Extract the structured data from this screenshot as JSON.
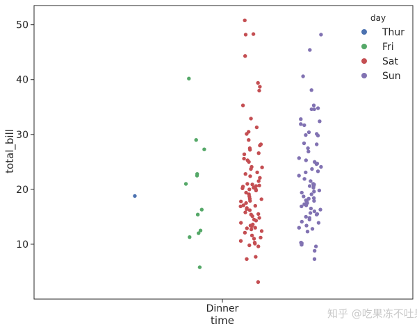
{
  "chart_data": {
    "type": "scatter",
    "subtype": "stripplot",
    "title": "",
    "xlabel": "time",
    "ylabel": "total_bill",
    "categories": [
      "Dinner"
    ],
    "ylim": [
      0,
      53.5
    ],
    "yticks": [
      10,
      20,
      30,
      40,
      50
    ],
    "grid": false,
    "legend": {
      "title": "day",
      "placement": "top-right",
      "entries": [
        "Thur",
        "Fri",
        "Sat",
        "Sun"
      ]
    },
    "series": [
      {
        "name": "Thur",
        "color": "#4c72b0",
        "values": [
          18.8
        ]
      },
      {
        "name": "Fri",
        "color": "#55a868",
        "values": [
          40.2,
          29.0,
          27.3,
          22.8,
          22.5,
          21.0,
          16.3,
          15.4,
          12.5,
          12.0,
          11.3,
          5.8
        ]
      },
      {
        "name": "Sat",
        "color": "#c44e52",
        "values": [
          50.8,
          48.3,
          48.2,
          44.3,
          39.4,
          38.7,
          38.0,
          35.3,
          32.9,
          31.3,
          30.5,
          30.1,
          29.0,
          28.2,
          28.0,
          27.5,
          27.2,
          26.6,
          26.4,
          25.6,
          25.3,
          25.0,
          24.1,
          24.0,
          23.7,
          23.1,
          22.8,
          22.4,
          22.1,
          21.5,
          21.0,
          20.9,
          20.7,
          20.6,
          20.5,
          20.3,
          20.2,
          20.0,
          20.0,
          19.8,
          19.4,
          19.1,
          18.7,
          18.3,
          18.2,
          17.9,
          17.8,
          17.5,
          17.1,
          17.0,
          16.9,
          16.6,
          16.4,
          16.2,
          15.8,
          15.5,
          15.4,
          15.1,
          14.8,
          14.5,
          14.3,
          13.9,
          13.6,
          13.4,
          13.3,
          13.0,
          12.9,
          12.7,
          12.4,
          12.1,
          11.6,
          11.2,
          11.0,
          10.6,
          10.3,
          10.1,
          9.8,
          9.6,
          7.7,
          7.3,
          3.1
        ]
      },
      {
        "name": "Sun",
        "color": "#8172b2",
        "values": [
          48.2,
          45.4,
          40.6,
          38.1,
          35.3,
          34.8,
          34.6,
          34.6,
          32.8,
          32.4,
          31.9,
          31.7,
          30.4,
          30.1,
          29.9,
          29.8,
          28.4,
          28.2,
          27.5,
          26.9,
          25.7,
          25.3,
          25.0,
          24.7,
          24.6,
          24.1,
          23.7,
          23.3,
          23.1,
          22.5,
          21.9,
          21.5,
          21.0,
          20.9,
          20.7,
          20.6,
          20.3,
          19.8,
          19.6,
          19.4,
          19.1,
          18.7,
          18.4,
          18.3,
          18.0,
          17.9,
          17.8,
          17.5,
          17.3,
          17.1,
          16.9,
          16.5,
          16.3,
          16.0,
          15.7,
          15.5,
          15.4,
          15.0,
          14.8,
          14.5,
          14.1,
          13.9,
          13.4,
          13.0,
          12.8,
          12.3,
          10.3,
          10.2,
          10.1,
          9.9,
          9.6,
          8.8,
          7.3
        ]
      }
    ]
  },
  "watermark": "知乎 @吃果冻不吐果冻皮"
}
